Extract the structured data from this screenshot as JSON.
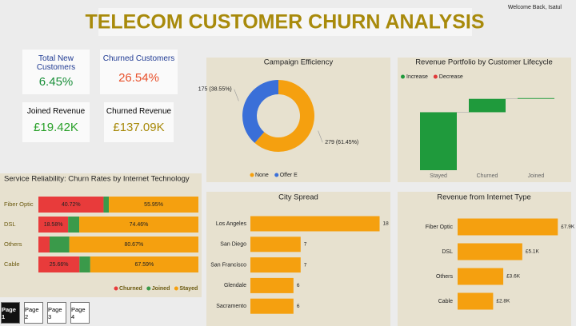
{
  "header": {
    "title": "TELECOM CUSTOMER CHURN ANALYSIS",
    "welcome": "Welcome Back, Isatul"
  },
  "kpis": [
    {
      "label": "Total New Customers",
      "value": "6.45%"
    },
    {
      "label": "Churned Customers",
      "value": "26.54%"
    },
    {
      "label": "Joined Revenue",
      "value": "£19.42K"
    },
    {
      "label": "Churned Revenue",
      "value": "£137.09K"
    }
  ],
  "chart_data": [
    {
      "type": "pie",
      "title": "Campaign Efficiency",
      "donut": true,
      "categories": [
        "None",
        "Offer E"
      ],
      "values": [
        279,
        175
      ],
      "value_labels": [
        "279 (61.45%)",
        "175 (38.55%)"
      ],
      "colors": [
        "#f5a00f",
        "#3a6fd8"
      ],
      "legend": "bottom"
    },
    {
      "type": "waterfall",
      "title": "Revenue Portfolio by Customer Lifecycle",
      "categories": [
        "Stayed",
        "Churned",
        "Joined"
      ],
      "values": [
        78,
        18,
        1
      ],
      "ylim": [
        0,
        100
      ],
      "legend_items": [
        {
          "name": "Increase",
          "color": "#1f9a3c"
        },
        {
          "name": "Decrease",
          "color": "#e03a3a"
        }
      ],
      "legend": "top-left"
    },
    {
      "type": "stacked_bar",
      "orientation": "horizontal",
      "title": "Service Reliability: Churn Rates by Internet Technology",
      "categories": [
        "Fiber Optic",
        "DSL",
        "Others",
        "Cable"
      ],
      "xlim": [
        0,
        100
      ],
      "legend": "bottom-right",
      "series": [
        {
          "name": "Churned",
          "color": "#e83b3b",
          "values": [
            40.72,
            18.58,
            7,
            25.66
          ],
          "value_labels": [
            "40.72%",
            "18.58%",
            null,
            "25.66%"
          ]
        },
        {
          "name": "Joined",
          "color": "#3a9a4a",
          "values": [
            3.33,
            6.96,
            12.33,
            6.75
          ],
          "value_labels": [
            null,
            null,
            null,
            null
          ]
        },
        {
          "name": "Stayed",
          "color": "#f5a00f",
          "values": [
            55.95,
            74.46,
            80.67,
            67.59
          ],
          "value_labels": [
            "55.95%",
            "74.46%",
            "80.67%",
            "67.59%"
          ]
        }
      ]
    },
    {
      "type": "bar",
      "orientation": "horizontal",
      "title": "City Spread",
      "categories": [
        "Los Angeles",
        "San Diego",
        "San Francisco",
        "Glendale",
        "Sacramento"
      ],
      "values": [
        18,
        7,
        7,
        6,
        6
      ],
      "color": "#f5a00f",
      "xlim": [
        0,
        18.5
      ]
    },
    {
      "type": "bar",
      "orientation": "horizontal",
      "title": "Revenue from Internet Type",
      "categories": [
        "Fiber Optic",
        "DSL",
        "Others",
        "Cable"
      ],
      "values": [
        7900,
        5100,
        3600,
        2800
      ],
      "value_labels": [
        "£7.9K",
        "£5.1K",
        "£3.6K",
        "£2.8K"
      ],
      "color": "#f5a00f",
      "xlim": [
        0,
        8200
      ]
    }
  ],
  "pages": {
    "items": [
      "Page 1",
      "Page 2",
      "Page 3",
      "Page 4"
    ],
    "active": 0
  }
}
